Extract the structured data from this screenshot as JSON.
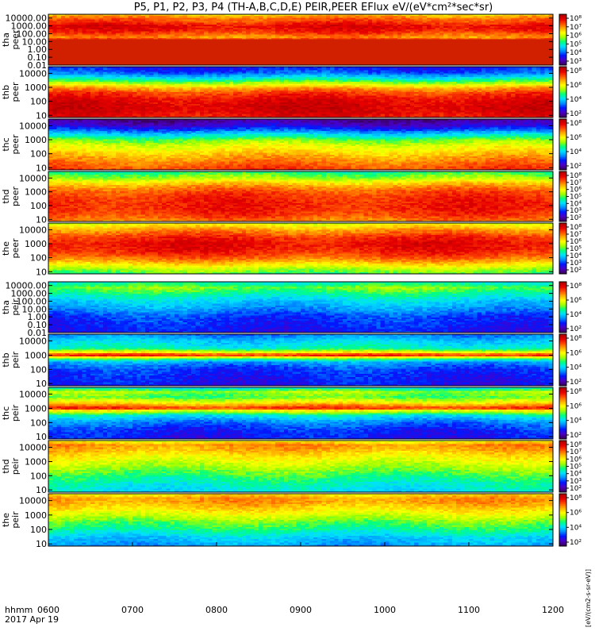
{
  "title": "P5, P1, P2, P3, P4 (TH-A,B,C,D,E) PEIR,PEER EFlux eV/(eV*cm²*sec*sr)",
  "footer": {
    "time_label": "hhmm",
    "date_label": "2017 Apr 19"
  },
  "colorbar_label": "[eV/(cm2-s-sr-eV)]  ",
  "chart_data": {
    "type": "heatmap",
    "x": {
      "label": "hhmm",
      "ticks": [
        "0600",
        "0700",
        "0800",
        "0900",
        "1000",
        "1100",
        "1200"
      ],
      "range": [
        "0600",
        "1200"
      ]
    },
    "panels": [
      {
        "id": "tha-peer",
        "probe": "tha",
        "species": "peer",
        "yticks": [
          "10000.00",
          "1000.00",
          "100.00",
          "10.00",
          "1.00",
          "0.10",
          "0.01"
        ],
        "ylog_range": [
          0.01,
          30000
        ],
        "cbar_ticks": [
          "10⁸",
          "10⁷",
          "10⁶",
          "10⁵",
          "10⁴",
          "10³"
        ],
        "fill_floor": 20,
        "profile": [
          [
            0.02,
            6.5
          ],
          [
            3,
            6.5
          ],
          [
            12,
            8
          ],
          [
            30,
            6.7
          ],
          [
            100,
            7.2
          ],
          [
            300,
            7.6
          ],
          [
            1000,
            7.8
          ],
          [
            3000,
            7.3
          ],
          [
            10000,
            7.0
          ],
          [
            30000,
            6.2
          ]
        ]
      },
      {
        "id": "thb-peer",
        "probe": "thb",
        "species": "peer",
        "yticks": [
          "10000",
          "1000",
          "100",
          "10"
        ],
        "ylog_range": [
          7,
          30000
        ],
        "cbar_ticks": [
          "10⁸",
          "10⁶",
          "10⁴",
          "10²"
        ],
        "profile": [
          [
            7,
            7.6
          ],
          [
            20,
            7.9
          ],
          [
            60,
            7.9
          ],
          [
            150,
            7.7
          ],
          [
            400,
            7.3
          ],
          [
            1000,
            6.5
          ],
          [
            3000,
            4.9
          ],
          [
            10000,
            3.5
          ],
          [
            30000,
            3.0
          ]
        ]
      },
      {
        "id": "thc-peer",
        "probe": "thc",
        "species": "peer",
        "yticks": [
          "10000",
          "1000",
          "100",
          "10"
        ],
        "ylog_range": [
          7,
          30000
        ],
        "cbar_ticks": [
          "10⁸",
          "10⁶",
          "10⁴",
          "10²"
        ],
        "profile": [
          [
            7,
            7.3
          ],
          [
            20,
            7.0
          ],
          [
            60,
            6.6
          ],
          [
            150,
            6.2
          ],
          [
            400,
            5.8
          ],
          [
            1000,
            5.2
          ],
          [
            3000,
            4.0
          ],
          [
            10000,
            2.7
          ],
          [
            30000,
            2.2
          ]
        ]
      },
      {
        "id": "thd-peer",
        "probe": "thd",
        "species": "peer",
        "yticks": [
          "10000",
          "1000",
          "100",
          "10"
        ],
        "ylog_range": [
          7,
          30000
        ],
        "cbar_ticks": [
          "10⁸",
          "10⁷",
          "10⁶",
          "10⁵",
          "10⁴",
          "10³",
          "10²"
        ],
        "profile": [
          [
            7,
            6.8
          ],
          [
            20,
            7.3
          ],
          [
            60,
            7.5
          ],
          [
            150,
            7.5
          ],
          [
            400,
            7.4
          ],
          [
            1000,
            7.2
          ],
          [
            3000,
            6.6
          ],
          [
            10000,
            5.5
          ],
          [
            30000,
            4.8
          ]
        ]
      },
      {
        "id": "the-peer",
        "probe": "the",
        "species": "peer",
        "yticks": [
          "10000",
          "1000",
          "100",
          "10"
        ],
        "ylog_range": [
          7,
          30000
        ],
        "cbar_ticks": [
          "10⁸",
          "10⁷",
          "10⁶",
          "10⁵",
          "10⁴",
          "10³",
          "10²"
        ],
        "profile": [
          [
            7,
            5.0
          ],
          [
            20,
            5.8
          ],
          [
            60,
            6.7
          ],
          [
            150,
            7.3
          ],
          [
            400,
            7.6
          ],
          [
            1000,
            7.7
          ],
          [
            3000,
            7.4
          ],
          [
            10000,
            6.7
          ],
          [
            30000,
            5.8
          ]
        ]
      },
      {
        "id": "tha-peir",
        "probe": "tha",
        "species": "peir",
        "yticks": [
          "10000.00",
          "1000.00",
          "100.00",
          "10.00",
          "1.00",
          "0.10",
          "0.01"
        ],
        "ylog_range": [
          0.01,
          30000
        ],
        "cbar_ticks": [
          "10⁸",
          "10⁶",
          "10⁴",
          "10²"
        ],
        "profile": [
          [
            0.01,
            3.0
          ],
          [
            1,
            3.3
          ],
          [
            10,
            3.8
          ],
          [
            100,
            4.2
          ],
          [
            1000,
            4.8
          ],
          [
            5000,
            5.3
          ],
          [
            30000,
            4.5
          ]
        ]
      },
      {
        "id": "thb-peir",
        "probe": "thb",
        "species": "peir",
        "yticks": [
          "10000",
          "1000",
          "100",
          "10"
        ],
        "ylog_range": [
          7,
          30000
        ],
        "cbar_ticks": [
          "10⁸",
          "10⁶",
          "10⁴",
          "10²"
        ],
        "profile": [
          [
            7,
            3.0
          ],
          [
            30,
            3.1
          ],
          [
            100,
            3.3
          ],
          [
            300,
            3.8
          ],
          [
            600,
            5.2
          ],
          [
            1000,
            7.8
          ],
          [
            1600,
            6.0
          ],
          [
            3000,
            4.6
          ],
          [
            10000,
            4.2
          ],
          [
            30000,
            3.6
          ]
        ]
      },
      {
        "id": "thc-peir",
        "probe": "thc",
        "species": "peir",
        "yticks": [
          "10000",
          "1000",
          "100",
          "10"
        ],
        "ylog_range": [
          7,
          30000
        ],
        "cbar_ticks": [
          "10⁸",
          "10⁶",
          "10⁴",
          "10²"
        ],
        "profile": [
          [
            7,
            3.0
          ],
          [
            30,
            3.2
          ],
          [
            100,
            3.6
          ],
          [
            300,
            4.4
          ],
          [
            700,
            6.0
          ],
          [
            1000,
            7.6
          ],
          [
            2000,
            6.4
          ],
          [
            6000,
            5.1
          ],
          [
            15000,
            5.5
          ],
          [
            30000,
            4.2
          ]
        ]
      },
      {
        "id": "thd-peir",
        "probe": "thd",
        "species": "peir",
        "yticks": [
          "10000",
          "1000",
          "100",
          "10"
        ],
        "ylog_range": [
          7,
          30000
        ],
        "cbar_ticks": [
          "10⁸",
          "10⁷",
          "10⁶",
          "10⁵",
          "10⁴",
          "10³",
          "10²"
        ],
        "profile": [
          [
            7,
            4.3
          ],
          [
            30,
            4.6
          ],
          [
            100,
            5.0
          ],
          [
            300,
            5.4
          ],
          [
            1000,
            5.8
          ],
          [
            3000,
            6.2
          ],
          [
            6000,
            6.5
          ],
          [
            15000,
            6.8
          ],
          [
            30000,
            5.8
          ]
        ]
      },
      {
        "id": "the-peir",
        "probe": "the",
        "species": "peir",
        "yticks": [
          "10000",
          "1000",
          "100",
          "10"
        ],
        "ylog_range": [
          7,
          30000
        ],
        "cbar_ticks": [
          "10⁸",
          "10⁶",
          "10⁴",
          "10²"
        ],
        "profile": [
          [
            7,
            3.8
          ],
          [
            30,
            4.2
          ],
          [
            100,
            4.8
          ],
          [
            300,
            5.2
          ],
          [
            1000,
            5.8
          ],
          [
            3000,
            6.3
          ],
          [
            8000,
            6.7
          ],
          [
            15000,
            6.7
          ],
          [
            30000,
            6.0
          ]
        ]
      }
    ],
    "colormap": [
      "#3a0060",
      "#4a00c8",
      "#0018ff",
      "#0090ff",
      "#00e0ff",
      "#00ff80",
      "#a0ff00",
      "#ffff00",
      "#ffb000",
      "#ff5000",
      "#e80000",
      "#b00000"
    ],
    "color_range_log": [
      2.0,
      8.3
    ]
  }
}
